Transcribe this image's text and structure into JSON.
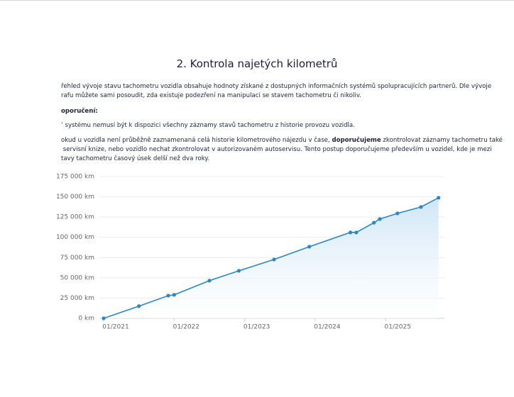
{
  "document": {
    "title": "2. Kontrola najetých kilometrů",
    "intro": [
      "řehled vývoje stavu tachometru vozidla obsahuje hodnoty získané z dostupných informačních systémů spolupracujících partnerů. Dle vývoje",
      "rafu můžete sami posoudit, zda existuje podezření na manipulaci se stavem tachometru či nikoliv."
    ],
    "heading": "oporučení:",
    "note": "’ systému nemusí být k dispozici všechny záznamy stavů tachometru z historie provozu vozidla.",
    "advice_first": [
      "okud u vozidla není průběžně zaznamenaná celá historie kilometrového nájezdu v čase, ",
      "doporučujeme",
      " zkontrolovat záznamy tachometru také"
    ],
    "advice": [
      " servisní knize, nebo vozidlo nechat zkontrolovat v autorizovaném autoservisu. Tento postup doporučujeme především u vozidel, kde je mezi",
      "tavy tachometru časový úsek delší než dva roky."
    ]
  },
  "chart_data": {
    "type": "line",
    "x": [
      "2021-01",
      "2021-07",
      "2021-12",
      "2022-01",
      "2022-07",
      "2022-12",
      "2023-06",
      "2023-12",
      "2024-07",
      "2024-08",
      "2024-11",
      "2024-12",
      "2025-03",
      "2025-07",
      "2025-10"
    ],
    "values": [
      0,
      15000,
      28000,
      29000,
      46500,
      58600,
      72600,
      88400,
      106000,
      106000,
      118000,
      122500,
      129500,
      137400,
      148800
    ],
    "color": "#2b86c5",
    "xlim": [
      "2021-01",
      "2025-11"
    ],
    "xticks": [
      {
        "value": "2021-01",
        "label": "01/2021"
      },
      {
        "value": "2022-01",
        "label": "01/2022"
      },
      {
        "value": "2023-01",
        "label": "01/2023"
      },
      {
        "value": "2024-01",
        "label": "01/2024"
      },
      {
        "value": "2025-01",
        "label": "01/2025"
      }
    ],
    "ylim": [
      0,
      175000
    ],
    "yticks": [
      {
        "value": 0,
        "label": "0 km"
      },
      {
        "value": 25000,
        "label": "25 000 km"
      },
      {
        "value": 50000,
        "label": "50 000 km"
      },
      {
        "value": 75000,
        "label": "75 000 km"
      },
      {
        "value": 100000,
        "label": "100 000 km"
      },
      {
        "value": 125000,
        "label": "125 000 km"
      },
      {
        "value": 150000,
        "label": "150 000 km"
      },
      {
        "value": 175000,
        "label": "175 000 km"
      }
    ],
    "grid": true
  }
}
